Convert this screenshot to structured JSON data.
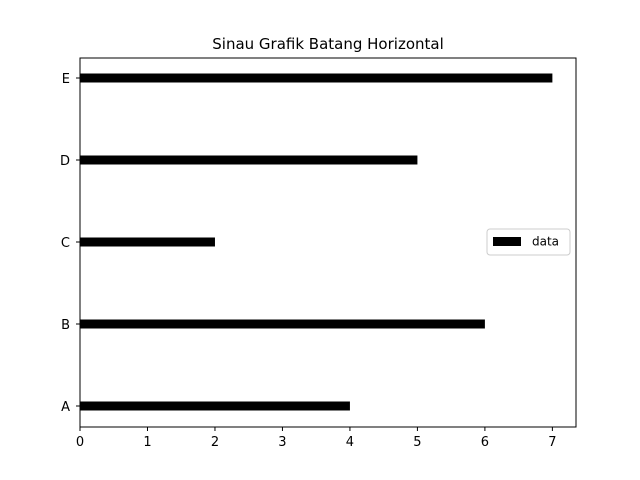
{
  "chart_data": {
    "type": "bar",
    "orientation": "horizontal",
    "title": "Sinau Grafik Batang Horizontal",
    "xlabel": "",
    "ylabel": "",
    "categories": [
      "A",
      "B",
      "C",
      "D",
      "E"
    ],
    "series": [
      {
        "name": "data",
        "values": [
          4,
          6,
          2,
          5,
          7
        ]
      }
    ],
    "xlim": [
      0,
      7.35
    ],
    "xticks": [
      "0",
      "1",
      "2",
      "3",
      "4",
      "5",
      "6",
      "7"
    ],
    "grid": false,
    "legend_position": "center-right",
    "bar_color": "#000000"
  }
}
